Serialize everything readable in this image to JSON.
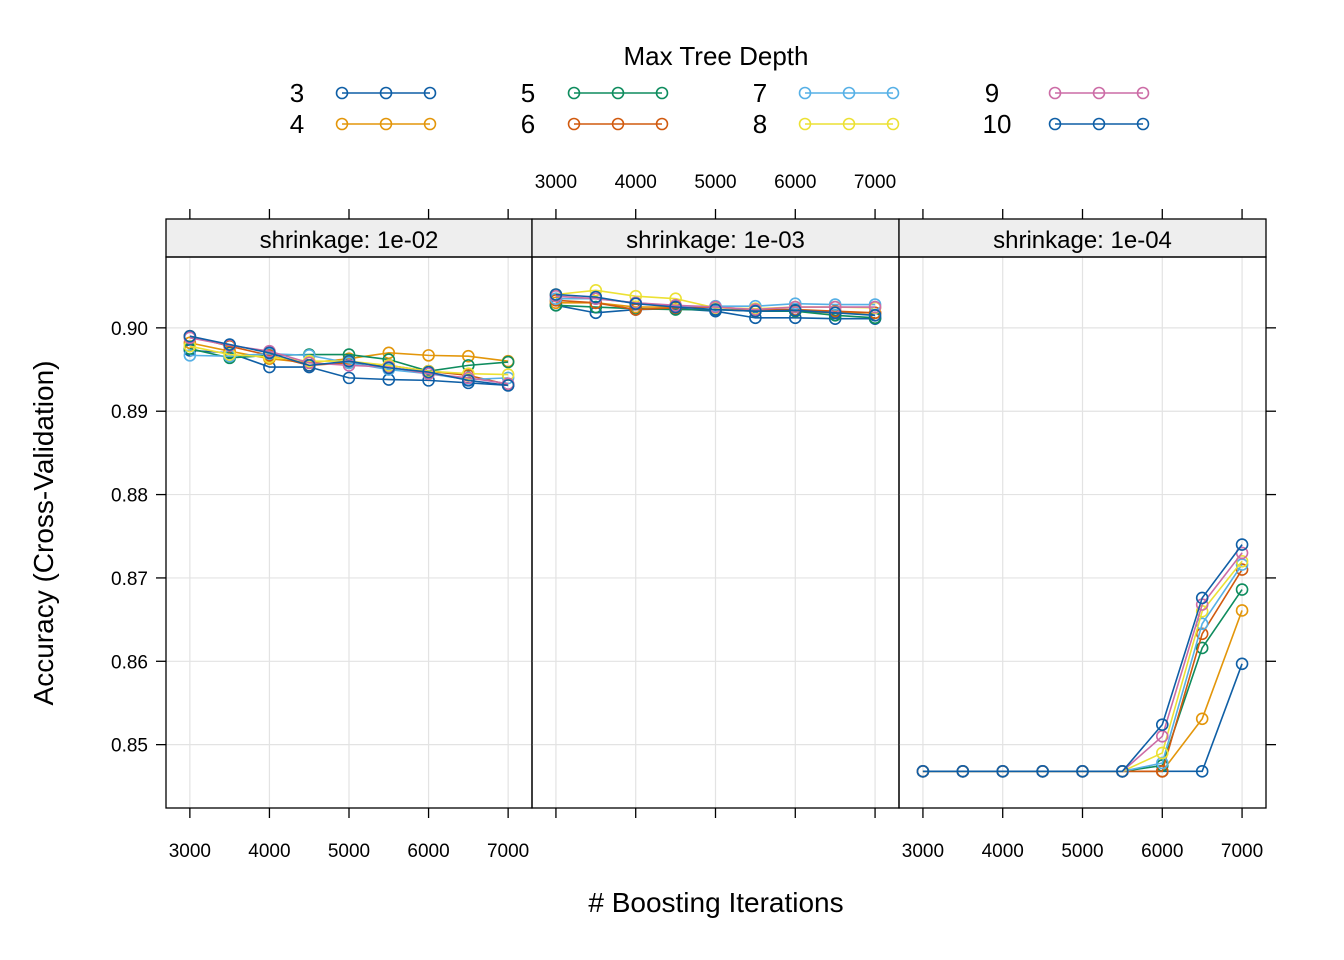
{
  "legend": {
    "title": "Max Tree Depth"
  },
  "xlabel": "# Boosting Iterations",
  "ylabel": "Accuracy (Cross-Validation)",
  "chart_data": {
    "type": "line",
    "x": [
      3000,
      3500,
      4000,
      4500,
      5000,
      5500,
      6000,
      6500,
      7000
    ],
    "x_ticks": [
      3000,
      4000,
      5000,
      6000,
      7000
    ],
    "y_ticks": [
      0.85,
      0.86,
      0.87,
      0.88,
      0.89,
      0.9
    ],
    "xlim": [
      2700,
      7300
    ],
    "ylim": [
      0.8424,
      0.9085
    ],
    "grid": true,
    "legend_position": "top",
    "legend_title": "Max Tree Depth",
    "xlabel": "# Boosting Iterations",
    "ylabel": "Accuracy (Cross-Validation)",
    "series_colors": {
      "3": "#0F5FA6",
      "4": "#E3960A",
      "5": "#0E8C5E",
      "6": "#D15A0F",
      "7": "#56B0E6",
      "8": "#ECE134",
      "9": "#CC6CA6",
      "10": "#0F5FA6"
    },
    "panels": [
      {
        "strip": "shrinkage: 1e-02",
        "series": [
          {
            "name": "3",
            "values": [
              0.8973,
              0.897,
              0.8953,
              0.8953,
              0.894,
              0.8938,
              0.8937,
              0.8934,
              0.8931
            ]
          },
          {
            "name": "4",
            "values": [
              0.8982,
              0.8972,
              0.8963,
              0.8958,
              0.8963,
              0.897,
              0.8967,
              0.8966,
              0.896
            ]
          },
          {
            "name": "5",
            "values": [
              0.8975,
              0.8964,
              0.8967,
              0.8968,
              0.8968,
              0.8962,
              0.8948,
              0.8955,
              0.8959
            ]
          },
          {
            "name": "6",
            "values": [
              0.899,
              0.8978,
              0.8967,
              0.8955,
              0.8958,
              0.8955,
              0.8948,
              0.8943,
              0.8932
            ]
          },
          {
            "name": "7",
            "values": [
              0.8967,
              0.8966,
              0.8969,
              0.8967,
              0.8958,
              0.895,
              0.8945,
              0.8938,
              0.894
            ]
          },
          {
            "name": "8",
            "values": [
              0.8978,
              0.8968,
              0.8965,
              0.896,
              0.896,
              0.8955,
              0.8948,
              0.8945,
              0.8944
            ]
          },
          {
            "name": "9",
            "values": [
              0.8988,
              0.8979,
              0.8972,
              0.8958,
              0.8955,
              0.8953,
              0.8945,
              0.894,
              0.8933
            ]
          },
          {
            "name": "10",
            "values": [
              0.899,
              0.898,
              0.897,
              0.8955,
              0.896,
              0.8952,
              0.8947,
              0.8937,
              0.8931
            ]
          }
        ]
      },
      {
        "strip": "shrinkage: 1e-03",
        "series": [
          {
            "name": "3",
            "values": [
              0.9027,
              0.9018,
              0.9022,
              0.9023,
              0.902,
              0.9012,
              0.9012,
              0.9011,
              0.9011
            ]
          },
          {
            "name": "4",
            "values": [
              0.903,
              0.903,
              0.9025,
              0.9025,
              0.9025,
              0.902,
              0.902,
              0.9018,
              0.9018
            ]
          },
          {
            "name": "5",
            "values": [
              0.9027,
              0.9025,
              0.9023,
              0.9022,
              0.9022,
              0.902,
              0.902,
              0.9015,
              0.9012
            ]
          },
          {
            "name": "6",
            "values": [
              0.9033,
              0.903,
              0.9022,
              0.9024,
              0.9025,
              0.9022,
              0.9022,
              0.902,
              0.9018
            ]
          },
          {
            "name": "7",
            "values": [
              0.9035,
              0.9035,
              0.903,
              0.9026,
              0.9026,
              0.9026,
              0.9029,
              0.9028,
              0.9028
            ]
          },
          {
            "name": "8",
            "values": [
              0.904,
              0.9045,
              0.9038,
              0.9035,
              0.9024,
              0.9023,
              0.9025,
              0.9025,
              0.9024
            ]
          },
          {
            "name": "9",
            "values": [
              0.9038,
              0.9035,
              0.903,
              0.9027,
              0.9025,
              0.9022,
              0.9025,
              0.9025,
              0.9025
            ]
          },
          {
            "name": "10",
            "values": [
              0.904,
              0.9037,
              0.9029,
              0.9025,
              0.9022,
              0.902,
              0.9021,
              0.9018,
              0.9015
            ]
          }
        ]
      },
      {
        "strip": "shrinkage: 1e-04",
        "series": [
          {
            "name": "3",
            "values": [
              0.8468,
              0.8468,
              0.8468,
              0.8468,
              0.8468,
              0.8468,
              0.8468,
              0.8468,
              0.8597
            ]
          },
          {
            "name": "4",
            "values": [
              0.8468,
              0.8468,
              0.8468,
              0.8468,
              0.8468,
              0.8468,
              0.8468,
              0.8531,
              0.8661
            ]
          },
          {
            "name": "5",
            "values": [
              0.8468,
              0.8468,
              0.8468,
              0.8468,
              0.8468,
              0.8468,
              0.8475,
              0.8616,
              0.8686
            ]
          },
          {
            "name": "6",
            "values": [
              0.8468,
              0.8468,
              0.8468,
              0.8468,
              0.8468,
              0.8468,
              0.8468,
              0.8633,
              0.871
            ]
          },
          {
            "name": "7",
            "values": [
              0.8468,
              0.8468,
              0.8468,
              0.8468,
              0.8468,
              0.8468,
              0.8478,
              0.8645,
              0.8716
            ]
          },
          {
            "name": "8",
            "values": [
              0.8468,
              0.8468,
              0.8468,
              0.8468,
              0.8468,
              0.8468,
              0.849,
              0.866,
              0.872
            ]
          },
          {
            "name": "9",
            "values": [
              0.8468,
              0.8468,
              0.8468,
              0.8468,
              0.8468,
              0.8468,
              0.851,
              0.8668,
              0.873
            ]
          },
          {
            "name": "10",
            "values": [
              0.8468,
              0.8468,
              0.8468,
              0.8468,
              0.8468,
              0.8468,
              0.8524,
              0.8676,
              0.874
            ]
          }
        ]
      }
    ]
  }
}
